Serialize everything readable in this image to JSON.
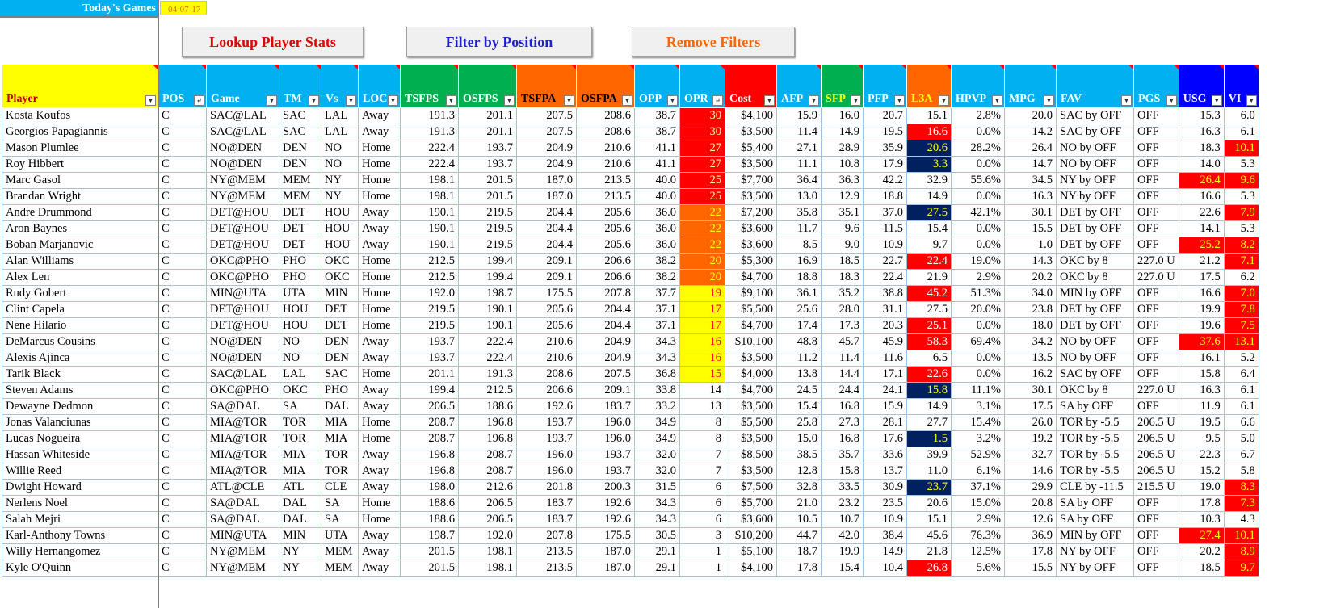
{
  "sheet": {
    "title": "Today's Games",
    "date": "04-07-17"
  },
  "buttons": {
    "lookup": "Lookup Player Stats",
    "filter": "Filter by Position",
    "remove": "Remove Filters"
  },
  "columns": [
    {
      "key": "player",
      "label": "Player"
    },
    {
      "key": "pos",
      "label": "POS"
    },
    {
      "key": "game",
      "label": "Game"
    },
    {
      "key": "tm",
      "label": "TM"
    },
    {
      "key": "vs",
      "label": "Vs"
    },
    {
      "key": "loc",
      "label": "LOC"
    },
    {
      "key": "tsfps",
      "label": "TSFPS"
    },
    {
      "key": "osfps",
      "label": "OSFPS"
    },
    {
      "key": "tsfpa",
      "label": "TSFPA"
    },
    {
      "key": "osfpa",
      "label": "OSFPA"
    },
    {
      "key": "opp",
      "label": "OPP"
    },
    {
      "key": "opr",
      "label": "OPR"
    },
    {
      "key": "cost",
      "label": "Cost"
    },
    {
      "key": "afp",
      "label": "AFP"
    },
    {
      "key": "sfp",
      "label": "SFP"
    },
    {
      "key": "pfp",
      "label": "PFP"
    },
    {
      "key": "l3a",
      "label": "L3A"
    },
    {
      "key": "hpvp",
      "label": "HPVP"
    },
    {
      "key": "mpg",
      "label": "MPG"
    },
    {
      "key": "fav",
      "label": "FAV"
    },
    {
      "key": "pgs",
      "label": "PGS"
    },
    {
      "key": "usg",
      "label": "USG"
    },
    {
      "key": "vi",
      "label": "VI"
    }
  ],
  "rows": [
    [
      "Kosta Koufos",
      "C",
      "SAC@LAL",
      "SAC",
      "LAL",
      "Away",
      "191.3",
      "201.1",
      "207.5",
      "208.6",
      "38.7",
      "30",
      "$4,100",
      "15.9",
      "16.0",
      "20.7",
      "15.1",
      "2.8%",
      "20.0",
      "SAC by OFF",
      "OFF",
      "15.3",
      "6.0"
    ],
    [
      "Georgios Papagiannis",
      "C",
      "SAC@LAL",
      "SAC",
      "LAL",
      "Away",
      "191.3",
      "201.1",
      "207.5",
      "208.6",
      "38.7",
      "30",
      "$3,500",
      "11.4",
      "14.9",
      "19.5",
      "16.6",
      "0.0%",
      "14.2",
      "SAC by OFF",
      "OFF",
      "16.3",
      "6.1"
    ],
    [
      "Mason Plumlee",
      "C",
      "NO@DEN",
      "DEN",
      "NO",
      "Home",
      "222.4",
      "193.7",
      "204.9",
      "210.6",
      "41.1",
      "27",
      "$5,400",
      "27.1",
      "28.9",
      "35.9",
      "20.6",
      "28.2%",
      "26.4",
      "NO by OFF",
      "OFF",
      "18.3",
      "10.1"
    ],
    [
      "Roy Hibbert",
      "C",
      "NO@DEN",
      "DEN",
      "NO",
      "Home",
      "222.4",
      "193.7",
      "204.9",
      "210.6",
      "41.1",
      "27",
      "$3,500",
      "11.1",
      "10.8",
      "17.9",
      "3.3",
      "0.0%",
      "14.7",
      "NO by OFF",
      "OFF",
      "14.0",
      "5.3"
    ],
    [
      "Marc Gasol",
      "C",
      "NY@MEM",
      "MEM",
      "NY",
      "Home",
      "198.1",
      "201.5",
      "187.0",
      "213.5",
      "40.0",
      "25",
      "$7,700",
      "36.4",
      "36.3",
      "42.2",
      "32.9",
      "55.6%",
      "34.5",
      "NY by OFF",
      "OFF",
      "26.4",
      "9.6"
    ],
    [
      "Brandan Wright",
      "C",
      "NY@MEM",
      "MEM",
      "NY",
      "Home",
      "198.1",
      "201.5",
      "187.0",
      "213.5",
      "40.0",
      "25",
      "$3,500",
      "13.0",
      "12.9",
      "18.8",
      "14.9",
      "0.0%",
      "16.3",
      "NY by OFF",
      "OFF",
      "16.6",
      "5.3"
    ],
    [
      "Andre Drummond",
      "C",
      "DET@HOU",
      "DET",
      "HOU",
      "Away",
      "190.1",
      "219.5",
      "204.4",
      "205.6",
      "36.0",
      "22",
      "$7,200",
      "35.8",
      "35.1",
      "37.0",
      "27.5",
      "42.1%",
      "30.1",
      "DET by OFF",
      "OFF",
      "22.6",
      "7.9"
    ],
    [
      "Aron Baynes",
      "C",
      "DET@HOU",
      "DET",
      "HOU",
      "Away",
      "190.1",
      "219.5",
      "204.4",
      "205.6",
      "36.0",
      "22",
      "$3,600",
      "11.7",
      "9.6",
      "11.5",
      "15.4",
      "0.0%",
      "15.5",
      "DET by OFF",
      "OFF",
      "14.1",
      "5.3"
    ],
    [
      "Boban Marjanovic",
      "C",
      "DET@HOU",
      "DET",
      "HOU",
      "Away",
      "190.1",
      "219.5",
      "204.4",
      "205.6",
      "36.0",
      "22",
      "$3,600",
      "8.5",
      "9.0",
      "10.9",
      "9.7",
      "0.0%",
      "1.0",
      "DET by OFF",
      "OFF",
      "25.2",
      "8.2"
    ],
    [
      "Alan Williams",
      "C",
      "OKC@PHO",
      "PHO",
      "OKC",
      "Home",
      "212.5",
      "199.4",
      "209.1",
      "206.6",
      "38.2",
      "20",
      "$5,300",
      "16.9",
      "18.5",
      "22.7",
      "22.4",
      "19.0%",
      "14.3",
      "OKC by 8",
      "227.0 U",
      "21.2",
      "7.1"
    ],
    [
      "Alex Len",
      "C",
      "OKC@PHO",
      "PHO",
      "OKC",
      "Home",
      "212.5",
      "199.4",
      "209.1",
      "206.6",
      "38.2",
      "20",
      "$4,700",
      "18.8",
      "18.3",
      "22.4",
      "21.9",
      "2.9%",
      "20.2",
      "OKC by 8",
      "227.0 U",
      "17.5",
      "6.2"
    ],
    [
      "Rudy Gobert",
      "C",
      "MIN@UTA",
      "UTA",
      "MIN",
      "Home",
      "192.0",
      "198.7",
      "175.5",
      "207.8",
      "37.7",
      "19",
      "$9,100",
      "36.1",
      "35.2",
      "38.8",
      "45.2",
      "51.3%",
      "34.0",
      "MIN by OFF",
      "OFF",
      "16.6",
      "7.0"
    ],
    [
      "Clint Capela",
      "C",
      "DET@HOU",
      "HOU",
      "DET",
      "Home",
      "219.5",
      "190.1",
      "205.6",
      "204.4",
      "37.1",
      "17",
      "$5,500",
      "25.6",
      "28.0",
      "31.1",
      "27.5",
      "20.0%",
      "23.8",
      "DET by OFF",
      "OFF",
      "19.9",
      "7.8"
    ],
    [
      "Nene Hilario",
      "C",
      "DET@HOU",
      "HOU",
      "DET",
      "Home",
      "219.5",
      "190.1",
      "205.6",
      "204.4",
      "37.1",
      "17",
      "$4,700",
      "17.4",
      "17.3",
      "20.3",
      "25.1",
      "0.0%",
      "18.0",
      "DET by OFF",
      "OFF",
      "19.6",
      "7.5"
    ],
    [
      "DeMarcus Cousins",
      "C",
      "NO@DEN",
      "NO",
      "DEN",
      "Away",
      "193.7",
      "222.4",
      "210.6",
      "204.9",
      "34.3",
      "16",
      "$10,100",
      "48.8",
      "45.7",
      "45.9",
      "58.3",
      "69.4%",
      "34.2",
      "NO by OFF",
      "OFF",
      "37.6",
      "13.1"
    ],
    [
      "Alexis Ajinca",
      "C",
      "NO@DEN",
      "NO",
      "DEN",
      "Away",
      "193.7",
      "222.4",
      "210.6",
      "204.9",
      "34.3",
      "16",
      "$3,500",
      "11.2",
      "11.4",
      "11.6",
      "6.5",
      "0.0%",
      "13.5",
      "NO by OFF",
      "OFF",
      "16.1",
      "5.2"
    ],
    [
      "Tarik Black",
      "C",
      "SAC@LAL",
      "LAL",
      "SAC",
      "Home",
      "201.1",
      "191.3",
      "208.6",
      "207.5",
      "36.8",
      "15",
      "$4,000",
      "13.8",
      "14.4",
      "17.1",
      "22.6",
      "0.0%",
      "16.2",
      "SAC by OFF",
      "OFF",
      "15.8",
      "6.4"
    ],
    [
      "Steven Adams",
      "C",
      "OKC@PHO",
      "OKC",
      "PHO",
      "Away",
      "199.4",
      "212.5",
      "206.6",
      "209.1",
      "33.8",
      "14",
      "$4,700",
      "24.5",
      "24.4",
      "24.1",
      "15.8",
      "11.1%",
      "30.1",
      "OKC by 8",
      "227.0 U",
      "16.3",
      "6.1"
    ],
    [
      "Dewayne Dedmon",
      "C",
      "SA@DAL",
      "SA",
      "DAL",
      "Away",
      "206.5",
      "188.6",
      "192.6",
      "183.7",
      "33.2",
      "13",
      "$3,500",
      "15.4",
      "16.8",
      "15.9",
      "14.9",
      "3.1%",
      "17.5",
      "SA by OFF",
      "OFF",
      "11.9",
      "6.1"
    ],
    [
      "Jonas Valanciunas",
      "C",
      "MIA@TOR",
      "TOR",
      "MIA",
      "Home",
      "208.7",
      "196.8",
      "193.7",
      "196.0",
      "34.9",
      "8",
      "$5,500",
      "25.8",
      "27.3",
      "28.1",
      "27.7",
      "15.4%",
      "26.0",
      "TOR by -5.5",
      "206.5 U",
      "19.5",
      "6.6"
    ],
    [
      "Lucas Nogueira",
      "C",
      "MIA@TOR",
      "TOR",
      "MIA",
      "Home",
      "208.7",
      "196.8",
      "193.7",
      "196.0",
      "34.9",
      "8",
      "$3,500",
      "15.0",
      "16.8",
      "17.6",
      "1.5",
      "3.2%",
      "19.2",
      "TOR by -5.5",
      "206.5 U",
      "9.5",
      "5.0"
    ],
    [
      "Hassan Whiteside",
      "C",
      "MIA@TOR",
      "MIA",
      "TOR",
      "Away",
      "196.8",
      "208.7",
      "196.0",
      "193.7",
      "32.0",
      "7",
      "$8,500",
      "38.5",
      "35.7",
      "33.6",
      "39.9",
      "52.9%",
      "32.7",
      "TOR by -5.5",
      "206.5 U",
      "22.3",
      "6.7"
    ],
    [
      "Willie Reed",
      "C",
      "MIA@TOR",
      "MIA",
      "TOR",
      "Away",
      "196.8",
      "208.7",
      "196.0",
      "193.7",
      "32.0",
      "7",
      "$3,500",
      "12.8",
      "15.8",
      "13.7",
      "11.0",
      "6.1%",
      "14.6",
      "TOR by -5.5",
      "206.5 U",
      "15.2",
      "5.8"
    ],
    [
      "Dwight Howard",
      "C",
      "ATL@CLE",
      "ATL",
      "CLE",
      "Away",
      "198.0",
      "212.6",
      "201.8",
      "200.3",
      "31.5",
      "6",
      "$7,500",
      "32.8",
      "33.5",
      "30.9",
      "23.7",
      "37.1%",
      "29.9",
      "CLE by -11.5",
      "215.5 U",
      "19.0",
      "8.3"
    ],
    [
      "Nerlens Noel",
      "C",
      "SA@DAL",
      "DAL",
      "SA",
      "Home",
      "188.6",
      "206.5",
      "183.7",
      "192.6",
      "34.3",
      "6",
      "$5,700",
      "21.0",
      "23.2",
      "23.5",
      "20.6",
      "15.0%",
      "20.8",
      "SA by OFF",
      "OFF",
      "17.8",
      "7.3"
    ],
    [
      "Salah Mejri",
      "C",
      "SA@DAL",
      "DAL",
      "SA",
      "Home",
      "188.6",
      "206.5",
      "183.7",
      "192.6",
      "34.3",
      "6",
      "$3,600",
      "10.5",
      "10.7",
      "10.9",
      "15.1",
      "2.9%",
      "12.6",
      "SA by OFF",
      "OFF",
      "10.3",
      "4.3"
    ],
    [
      "Karl-Anthony Towns",
      "C",
      "MIN@UTA",
      "MIN",
      "UTA",
      "Away",
      "198.7",
      "192.0",
      "207.8",
      "175.5",
      "30.5",
      "3",
      "$10,200",
      "44.7",
      "42.0",
      "38.4",
      "45.6",
      "76.3%",
      "36.9",
      "MIN by OFF",
      "OFF",
      "27.4",
      "10.1"
    ],
    [
      "Willy Hernangomez",
      "C",
      "NY@MEM",
      "NY",
      "MEM",
      "Away",
      "201.5",
      "198.1",
      "213.5",
      "187.0",
      "29.1",
      "1",
      "$5,100",
      "18.7",
      "19.9",
      "14.9",
      "21.8",
      "12.5%",
      "17.8",
      "NY by OFF",
      "OFF",
      "20.2",
      "8.9"
    ],
    [
      "Kyle O'Quinn",
      "C",
      "NY@MEM",
      "NY",
      "MEM",
      "Away",
      "201.5",
      "198.1",
      "213.5",
      "187.0",
      "29.1",
      "1",
      "$4,100",
      "17.8",
      "15.4",
      "10.4",
      "26.8",
      "5.6%",
      "15.5",
      "NY by OFF",
      "OFF",
      "18.5",
      "9.7"
    ]
  ],
  "highlights": {
    "opr_red": [
      0,
      1,
      2,
      3,
      4,
      5
    ],
    "opr_orange": [
      6,
      7,
      8,
      9,
      10
    ],
    "opr_yellow": [
      11,
      12,
      13,
      14,
      15,
      16
    ],
    "l3a_red": [
      1,
      9,
      11,
      13,
      14,
      16,
      28
    ],
    "l3a_navy": [
      2,
      3,
      6,
      17,
      20,
      23
    ],
    "usg_red": [
      4,
      8,
      14,
      26
    ],
    "vi_red": [
      2,
      4,
      6,
      8,
      9,
      11,
      12,
      13,
      14,
      23,
      24,
      26,
      27,
      28
    ]
  },
  "colors": {
    "header_blue": "#00b0f0",
    "header_green": "#00b050",
    "header_orange": "#ff6600",
    "header_red": "#ff0000",
    "header_yellow": "#ffff00",
    "header_dark_blue": "#0000ff",
    "highlight_navy": "#002060"
  }
}
